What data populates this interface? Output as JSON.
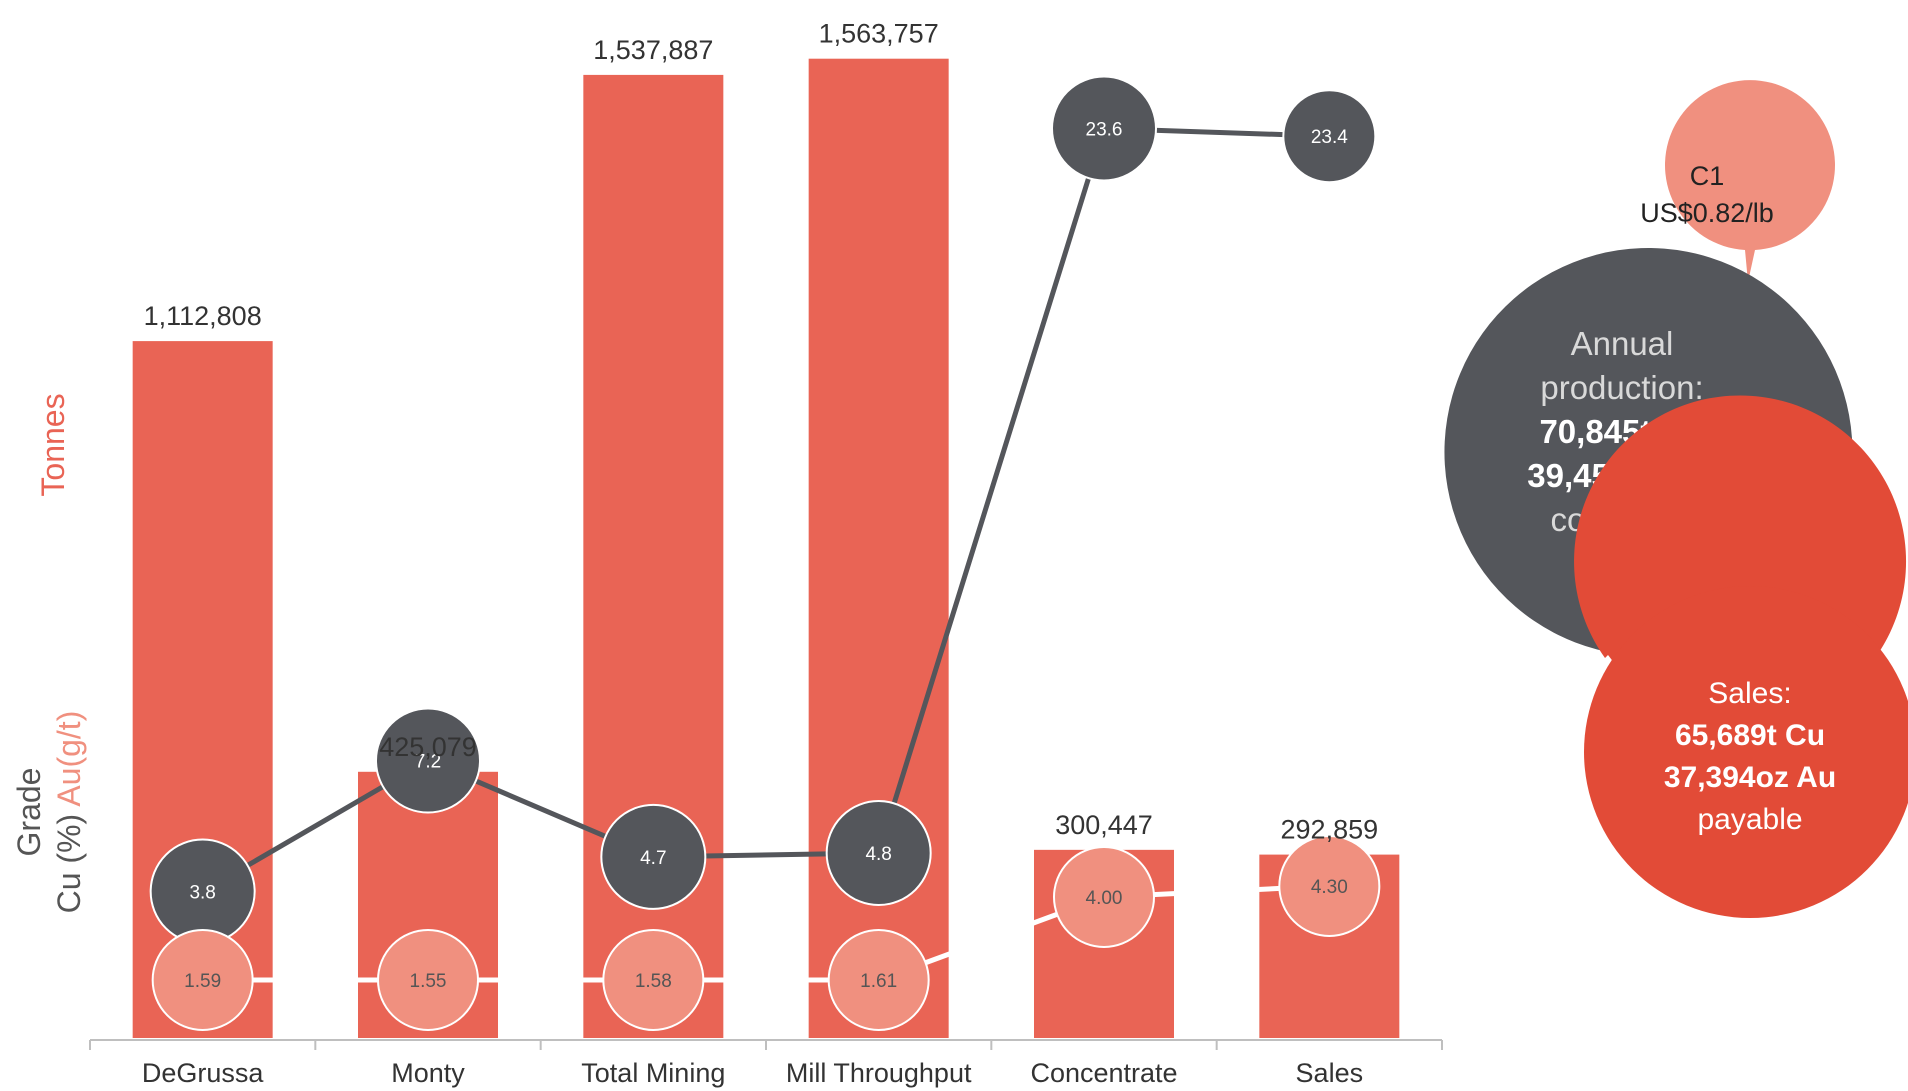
{
  "chart_data": {
    "type": "bar",
    "categories": [
      "DeGrussa",
      "Monty",
      "Total Mining",
      "Mill Throughput",
      "Concentrate",
      "Sales"
    ],
    "series": [
      {
        "name": "Tonnes",
        "type": "bar",
        "values": [
          1112808,
          425079,
          1537887,
          1563757,
          300447,
          292859
        ],
        "labels": [
          "1,112,808",
          "425,079",
          "1,537,887",
          "1,563,757",
          "300,447",
          "292,859"
        ]
      },
      {
        "name": "Cu (%)",
        "type": "line",
        "values": [
          3.8,
          7.2,
          4.7,
          4.8,
          23.6,
          23.4
        ],
        "labels": [
          "3.8",
          "7.2",
          "4.7",
          "4.8",
          "23.6",
          "23.4"
        ]
      },
      {
        "name": "Au(g/t)",
        "type": "line",
        "values": [
          1.59,
          1.55,
          1.58,
          1.61,
          4.0,
          4.3
        ],
        "labels": [
          "1.59",
          "1.55",
          "1.58",
          "1.61",
          "4.00",
          "4.30"
        ]
      }
    ],
    "ylabel_tonnes": "Tonnes",
    "ylabel_grade": "Grade",
    "ylabel_cu": "Cu (%)",
    "ylabel_au": "Au(g/t)",
    "ylim_tonnes": [
      0,
      1600000
    ],
    "ylim_grade": [
      0,
      26
    ],
    "grid": false
  },
  "callouts": {
    "c1": {
      "line1": "C1",
      "line2": "US$0.82/lb"
    },
    "annual": {
      "line1": "Annual",
      "line2": "production:",
      "line3": "70,845t Cu",
      "line4": "39,459oz Au",
      "line5": "contained"
    },
    "sales": {
      "line1": "Sales:",
      "line2": "65,689t Cu",
      "line3": "37,394oz Au",
      "line4": "payable"
    }
  },
  "colors": {
    "bar": "#E96455",
    "cu": "#54565B",
    "au": "#F0907F",
    "sales": "#E24B37",
    "text": "#333333"
  }
}
